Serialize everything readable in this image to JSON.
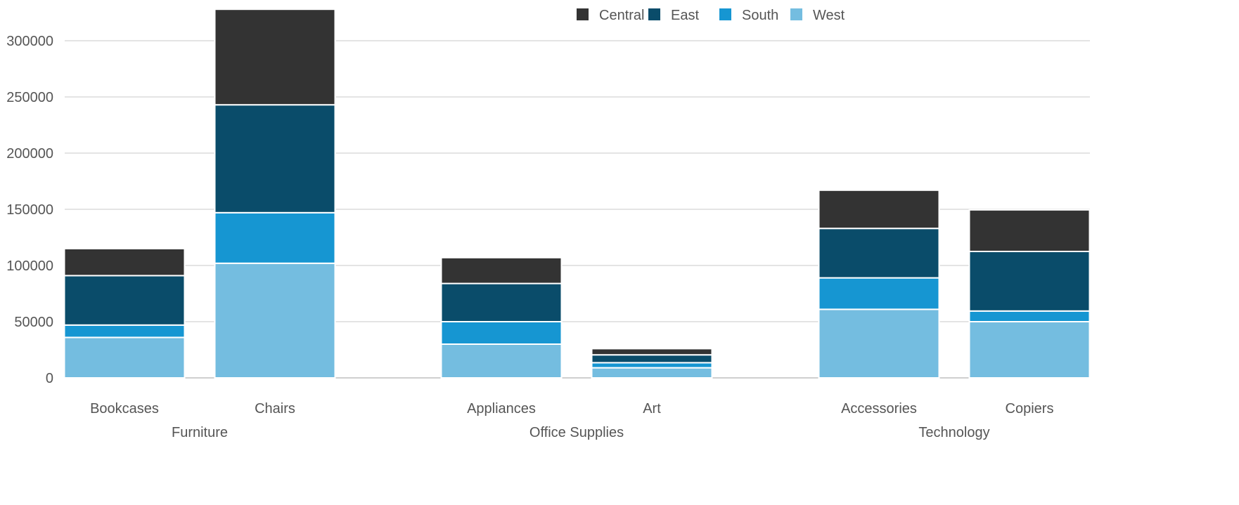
{
  "chart_data": {
    "type": "bar",
    "stacked": true,
    "groups": [
      {
        "name": "Furniture",
        "categories": [
          "Bookcases",
          "Chairs"
        ]
      },
      {
        "name": "Office Supplies",
        "categories": [
          "Appliances",
          "Art"
        ]
      },
      {
        "name": "Technology",
        "categories": [
          "Accessories",
          "Copiers"
        ]
      }
    ],
    "categories": [
      "Bookcases",
      "Chairs",
      "Appliances",
      "Art",
      "Accessories",
      "Copiers"
    ],
    "series": [
      {
        "name": "West",
        "color": "#74bde0",
        "values": [
          36000,
          102000,
          30000,
          9000,
          61000,
          50000
        ]
      },
      {
        "name": "South",
        "color": "#1696d2",
        "values": [
          11000,
          45000,
          20000,
          4500,
          28000,
          9500
        ]
      },
      {
        "name": "East",
        "color": "#0a4c6a",
        "values": [
          44000,
          96000,
          34000,
          7000,
          44000,
          53000
        ]
      },
      {
        "name": "Central",
        "color": "#333333",
        "values": [
          24000,
          85000,
          23000,
          5500,
          34000,
          37000
        ]
      }
    ],
    "legend_order": [
      "Central",
      "East",
      "South",
      "West"
    ],
    "legend_position": "top-center",
    "ylim": [
      0,
      330000
    ],
    "yticks": [
      0,
      50000,
      100000,
      150000,
      200000,
      250000,
      300000
    ],
    "grid": true,
    "title": "",
    "xlabel": "",
    "ylabel": ""
  }
}
